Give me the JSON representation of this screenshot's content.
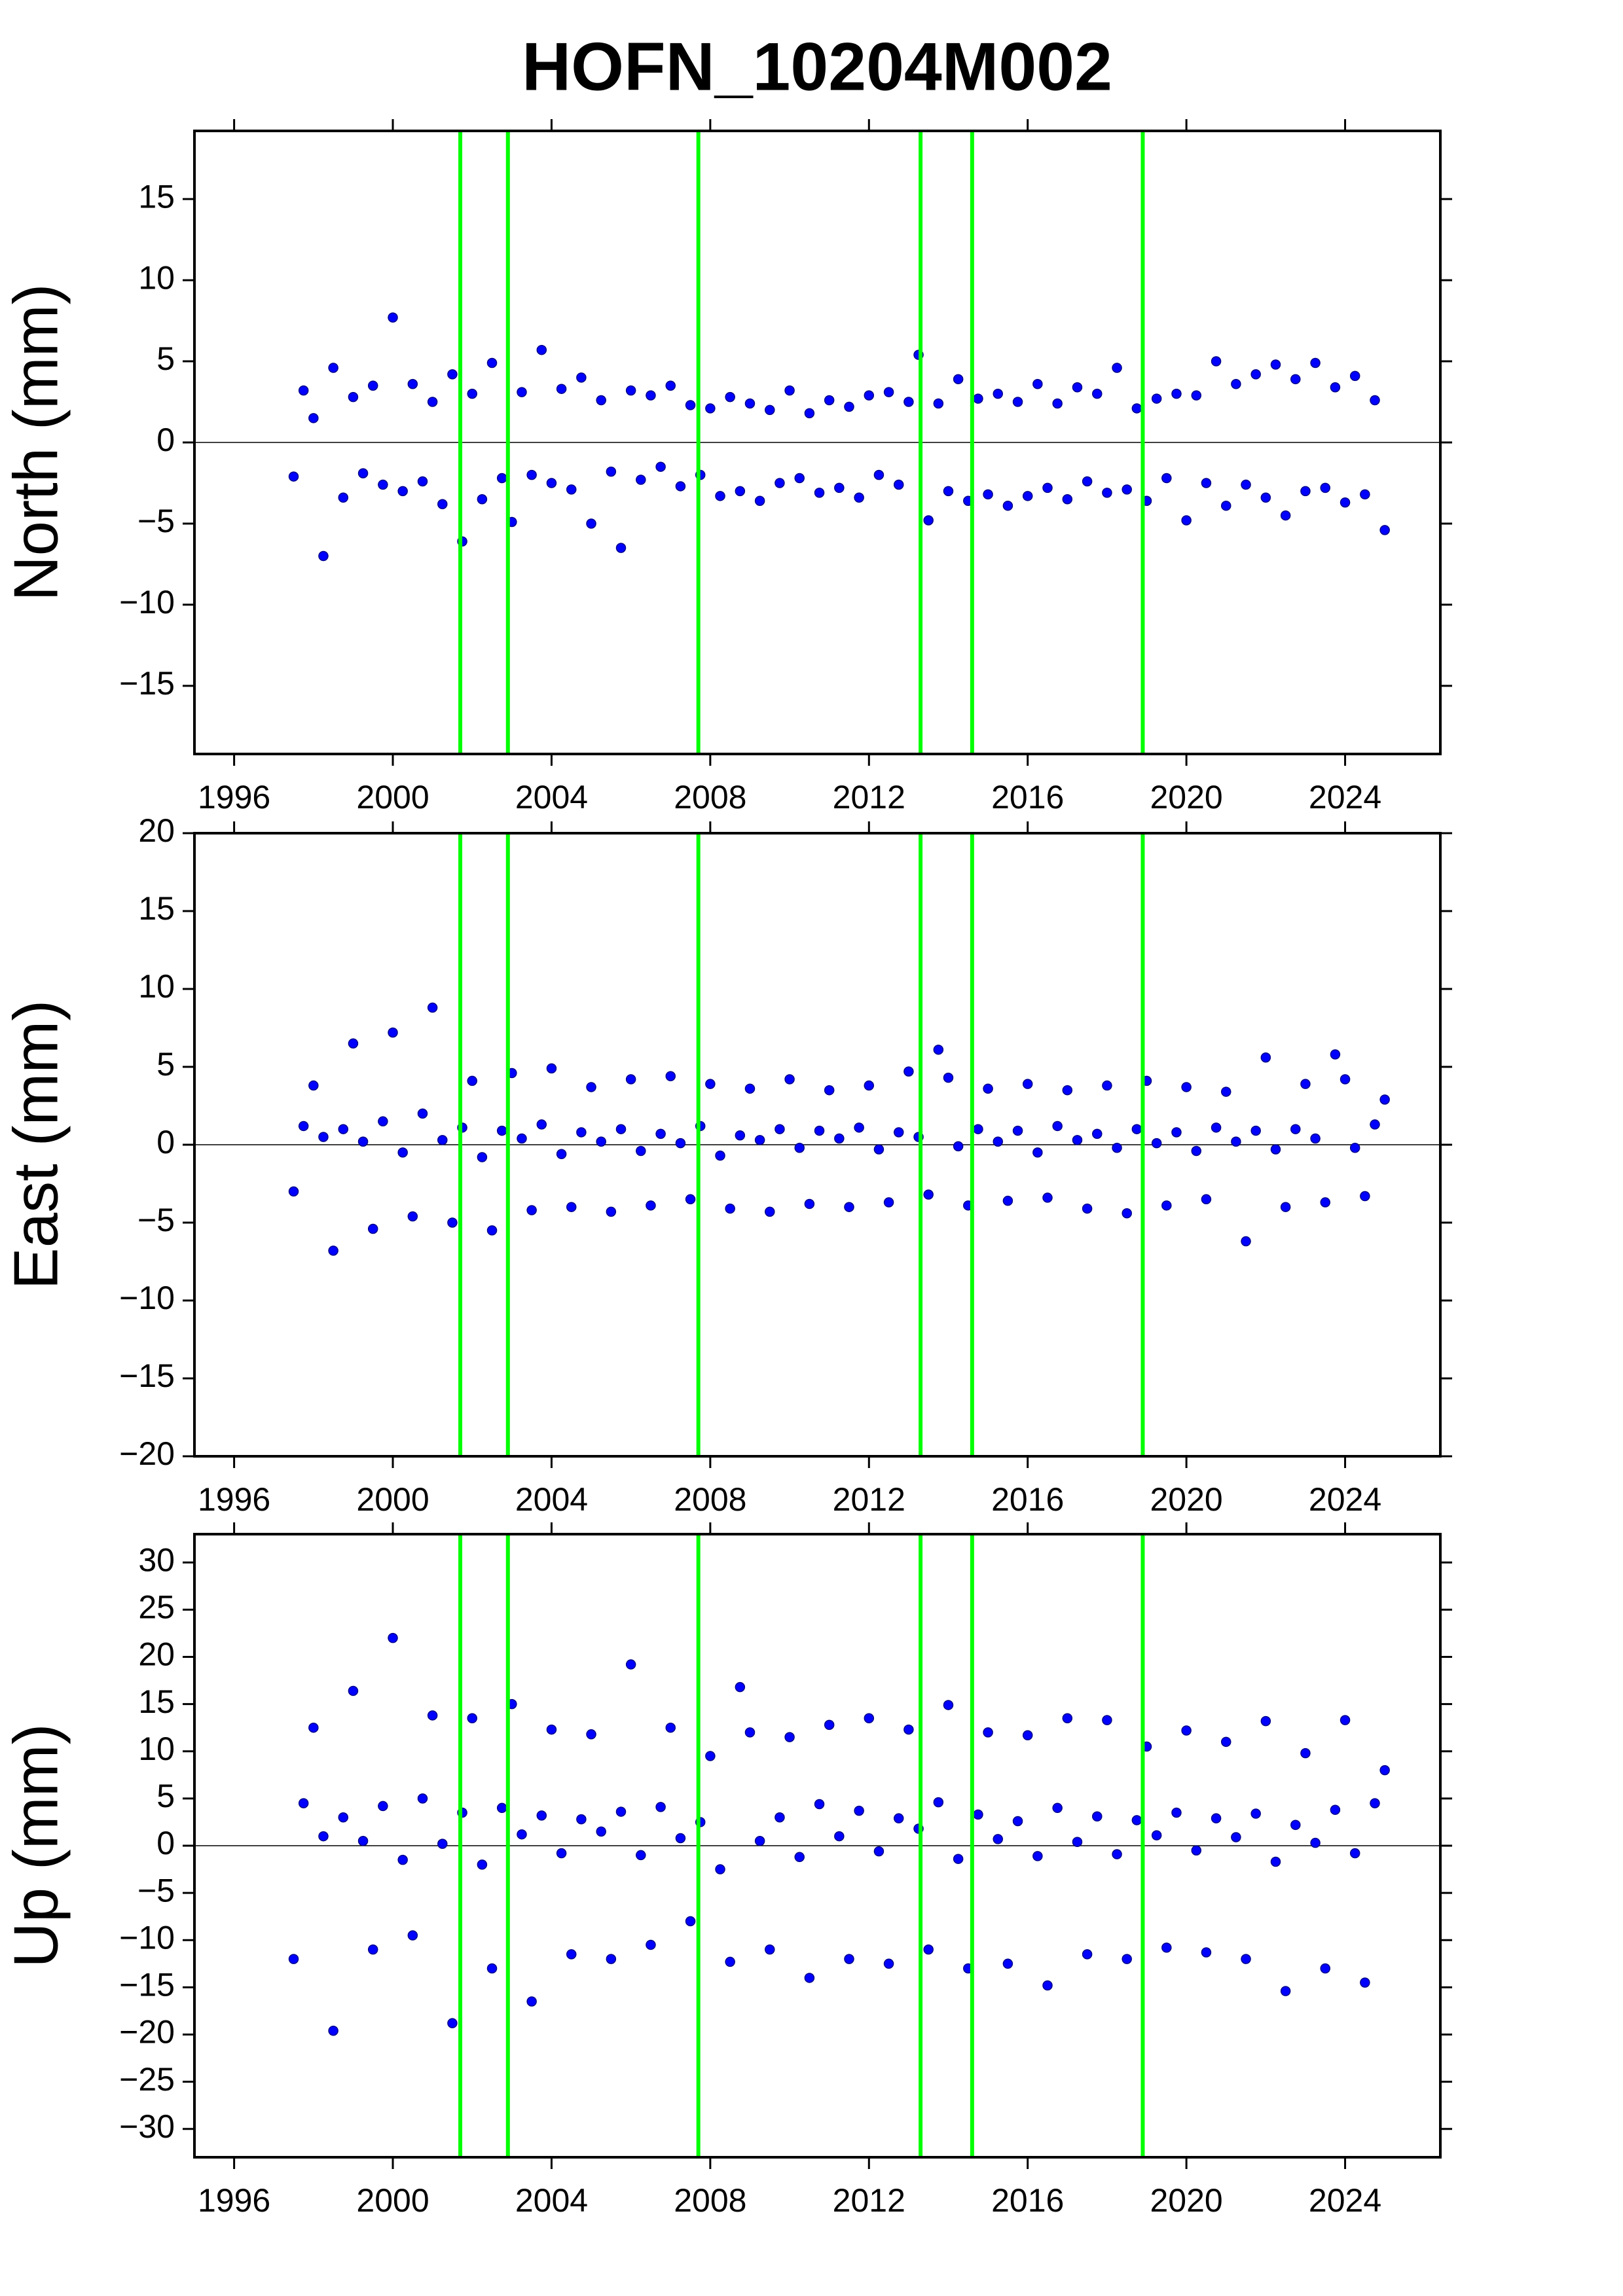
{
  "title": "HOFN_10204M002",
  "chart_data": [
    {
      "type": "scatter",
      "ylabel": "North (mm)",
      "color": "#0000ff",
      "xlim": [
        1995,
        2026.4
      ],
      "ylim": [
        -19.2,
        19.2
      ],
      "xticks": [
        1996,
        2000,
        2004,
        2008,
        2012,
        2016,
        2020,
        2024
      ],
      "yticks": [
        {
          "value": -15,
          "label": "−15"
        },
        {
          "value": -10,
          "label": "−10"
        },
        {
          "value": -5,
          "label": "−5"
        },
        0,
        5,
        10,
        15
      ],
      "hline": 0,
      "vlines": [
        2001.7,
        2002.9,
        2007.7,
        2013.3,
        2014.6,
        2018.9
      ],
      "vline_color": "#00ff00",
      "x": [
        1997.5,
        1997.75,
        1998,
        1998.25,
        1998.5,
        1998.75,
        1999,
        1999.25,
        1999.5,
        1999.75,
        2000,
        2000.25,
        2000.5,
        2000.75,
        2001,
        2001.25,
        2001.5,
        2001.75,
        2002,
        2002.25,
        2002.5,
        2002.75,
        2003,
        2003.25,
        2003.5,
        2003.75,
        2004,
        2004.25,
        2004.5,
        2004.75,
        2005,
        2005.25,
        2005.5,
        2005.75,
        2006,
        2006.25,
        2006.5,
        2006.75,
        2007,
        2007.25,
        2007.5,
        2007.75,
        2008,
        2008.25,
        2008.5,
        2008.75,
        2009,
        2009.25,
        2009.5,
        2009.75,
        2010,
        2010.25,
        2010.5,
        2010.75,
        2011,
        2011.25,
        2011.5,
        2011.75,
        2012,
        2012.25,
        2012.5,
        2012.75,
        2013,
        2013.25,
        2013.5,
        2013.75,
        2014,
        2014.25,
        2014.5,
        2014.75,
        2015,
        2015.25,
        2015.5,
        2015.75,
        2016,
        2016.25,
        2016.5,
        2016.75,
        2017,
        2017.25,
        2017.5,
        2017.75,
        2018,
        2018.25,
        2018.5,
        2018.75,
        2019,
        2019.25,
        2019.5,
        2019.75,
        2020,
        2020.25,
        2020.5,
        2020.75,
        2021,
        2021.25,
        2021.5,
        2021.75,
        2022,
        2022.25,
        2022.5,
        2022.75,
        2023,
        2023.25,
        2023.5,
        2023.75,
        2024,
        2024.25,
        2024.5,
        2024.75,
        2025
      ],
      "values": [
        -2.1,
        3.2,
        1.5,
        -7.0,
        4.6,
        -3.4,
        2.8,
        -1.9,
        3.5,
        -2.6,
        7.7,
        -3.0,
        3.6,
        -2.4,
        2.5,
        -3.8,
        4.2,
        -6.1,
        3.0,
        -3.5,
        4.9,
        -2.2,
        -4.9,
        3.1,
        -2.0,
        5.7,
        -2.5,
        3.3,
        -2.9,
        4.0,
        -5.0,
        2.6,
        -1.8,
        -6.5,
        3.2,
        -2.3,
        2.9,
        -1.5,
        3.5,
        -2.7,
        2.3,
        -2.0,
        2.1,
        -3.3,
        2.8,
        -3.0,
        2.4,
        -3.6,
        2.0,
        -2.5,
        3.2,
        -2.2,
        1.8,
        -3.1,
        2.6,
        -2.8,
        2.2,
        -3.4,
        2.9,
        -2.0,
        3.1,
        -2.6,
        2.5,
        5.4,
        -4.8,
        2.4,
        -3.0,
        3.9,
        -3.6,
        2.7,
        -3.2,
        3.0,
        -3.9,
        2.5,
        -3.3,
        3.6,
        -2.8,
        2.4,
        -3.5,
        3.4,
        -2.4,
        3.0,
        -3.1,
        4.6,
        -2.9,
        2.1,
        -3.6,
        2.7,
        -2.2,
        3.0,
        -4.8,
        2.9,
        -2.5,
        5.0,
        -3.9,
        3.6,
        -2.6,
        4.2,
        -3.4,
        4.8,
        -4.5,
        3.9,
        -3.0,
        4.9,
        -2.8,
        3.4,
        -3.7,
        4.1,
        -3.2,
        2.6,
        -5.4
      ]
    },
    {
      "type": "scatter",
      "ylabel": "East (mm)",
      "color": "#0000ff",
      "xlim": [
        1995,
        2026.4
      ],
      "ylim": [
        -20,
        20
      ],
      "xticks": [
        1996,
        2000,
        2004,
        2008,
        2012,
        2016,
        2020,
        2024
      ],
      "yticks": [
        {
          "value": -20,
          "label": "−20"
        },
        {
          "value": -15,
          "label": "−15"
        },
        {
          "value": -10,
          "label": "−10"
        },
        {
          "value": -5,
          "label": "−5"
        },
        0,
        5,
        10,
        15,
        20
      ],
      "hline": 0,
      "vlines": [
        2001.7,
        2002.9,
        2007.7,
        2013.3,
        2014.6,
        2018.9
      ],
      "vline_color": "#00ff00",
      "x": [
        1997.5,
        1997.75,
        1998,
        1998.25,
        1998.5,
        1998.75,
        1999,
        1999.25,
        1999.5,
        1999.75,
        2000,
        2000.25,
        2000.5,
        2000.75,
        2001,
        2001.25,
        2001.5,
        2001.75,
        2002,
        2002.25,
        2002.5,
        2002.75,
        2003,
        2003.25,
        2003.5,
        2003.75,
        2004,
        2004.25,
        2004.5,
        2004.75,
        2005,
        2005.25,
        2005.5,
        2005.75,
        2006,
        2006.25,
        2006.5,
        2006.75,
        2007,
        2007.25,
        2007.5,
        2007.75,
        2008,
        2008.25,
        2008.5,
        2008.75,
        2009,
        2009.25,
        2009.5,
        2009.75,
        2010,
        2010.25,
        2010.5,
        2010.75,
        2011,
        2011.25,
        2011.5,
        2011.75,
        2012,
        2012.25,
        2012.5,
        2012.75,
        2013,
        2013.25,
        2013.5,
        2013.75,
        2014,
        2014.25,
        2014.5,
        2014.75,
        2015,
        2015.25,
        2015.5,
        2015.75,
        2016,
        2016.25,
        2016.5,
        2016.75,
        2017,
        2017.25,
        2017.5,
        2017.75,
        2018,
        2018.25,
        2018.5,
        2018.75,
        2019,
        2019.25,
        2019.5,
        2019.75,
        2020,
        2020.25,
        2020.5,
        2020.75,
        2021,
        2021.25,
        2021.5,
        2021.75,
        2022,
        2022.25,
        2022.5,
        2022.75,
        2023,
        2023.25,
        2023.5,
        2023.75,
        2024,
        2024.25,
        2024.5,
        2024.75,
        2025
      ],
      "values": [
        -3.0,
        1.2,
        3.8,
        0.5,
        -6.8,
        1.0,
        6.5,
        0.2,
        -5.4,
        1.5,
        7.2,
        -0.5,
        -4.6,
        2.0,
        8.8,
        0.3,
        -5.0,
        1.1,
        4.1,
        -0.8,
        -5.5,
        0.9,
        4.6,
        0.4,
        -4.2,
        1.3,
        4.9,
        -0.6,
        -4.0,
        0.8,
        3.7,
        0.2,
        -4.3,
        1.0,
        4.2,
        -0.4,
        -3.9,
        0.7,
        4.4,
        0.1,
        -3.5,
        1.2,
        3.9,
        -0.7,
        -4.1,
        0.6,
        3.6,
        0.3,
        -4.3,
        1.0,
        4.2,
        -0.2,
        -3.8,
        0.9,
        3.5,
        0.4,
        -4.0,
        1.1,
        3.8,
        -0.3,
        -3.7,
        0.8,
        4.7,
        0.5,
        -3.2,
        6.1,
        4.3,
        -0.1,
        -3.9,
        1.0,
        3.6,
        0.2,
        -3.6,
        0.9,
        3.9,
        -0.5,
        -3.4,
        1.2,
        3.5,
        0.3,
        -4.1,
        0.7,
        3.8,
        -0.2,
        -4.4,
        1.0,
        4.1,
        0.1,
        -3.9,
        0.8,
        3.7,
        -0.4,
        -3.5,
        1.1,
        3.4,
        0.2,
        -6.2,
        0.9,
        5.6,
        -0.3,
        -4.0,
        1.0,
        3.9,
        0.4,
        -3.7,
        5.8,
        4.2,
        -0.2,
        -3.3,
        1.3,
        2.9
      ]
    },
    {
      "type": "scatter",
      "ylabel": "Up (mm)",
      "color": "#0000ff",
      "xlim": [
        1995,
        2026.4
      ],
      "ylim": [
        -33,
        33
      ],
      "xticks": [
        1996,
        2000,
        2004,
        2008,
        2012,
        2016,
        2020,
        2024
      ],
      "yticks": [
        {
          "value": -30,
          "label": "−30"
        },
        {
          "value": -25,
          "label": "−25"
        },
        {
          "value": -20,
          "label": "−20"
        },
        {
          "value": -15,
          "label": "−15"
        },
        {
          "value": -10,
          "label": "−10"
        },
        {
          "value": -5,
          "label": "−5"
        },
        0,
        5,
        10,
        15,
        20,
        25,
        30
      ],
      "hline": 0,
      "vlines": [
        2001.7,
        2002.9,
        2007.7,
        2013.3,
        2014.6,
        2018.9
      ],
      "vline_color": "#00ff00",
      "x": [
        1997.5,
        1997.75,
        1998,
        1998.25,
        1998.5,
        1998.75,
        1999,
        1999.25,
        1999.5,
        1999.75,
        2000,
        2000.25,
        2000.5,
        2000.75,
        2001,
        2001.25,
        2001.5,
        2001.75,
        2002,
        2002.25,
        2002.5,
        2002.75,
        2003,
        2003.25,
        2003.5,
        2003.75,
        2004,
        2004.25,
        2004.5,
        2004.75,
        2005,
        2005.25,
        2005.5,
        2005.75,
        2006,
        2006.25,
        2006.5,
        2006.75,
        2007,
        2007.25,
        2007.5,
        2007.75,
        2008,
        2008.25,
        2008.5,
        2008.75,
        2009,
        2009.25,
        2009.5,
        2009.75,
        2010,
        2010.25,
        2010.5,
        2010.75,
        2011,
        2011.25,
        2011.5,
        2011.75,
        2012,
        2012.25,
        2012.5,
        2012.75,
        2013,
        2013.25,
        2013.5,
        2013.75,
        2014,
        2014.25,
        2014.5,
        2014.75,
        2015,
        2015.25,
        2015.5,
        2015.75,
        2016,
        2016.25,
        2016.5,
        2016.75,
        2017,
        2017.25,
        2017.5,
        2017.75,
        2018,
        2018.25,
        2018.5,
        2018.75,
        2019,
        2019.25,
        2019.5,
        2019.75,
        2020,
        2020.25,
        2020.5,
        2020.75,
        2021,
        2021.25,
        2021.5,
        2021.75,
        2022,
        2022.25,
        2022.5,
        2022.75,
        2023,
        2023.25,
        2023.5,
        2023.75,
        2024,
        2024.25,
        2024.5,
        2024.75,
        2025
      ],
      "values": [
        -12.0,
        4.5,
        12.5,
        1.0,
        -19.6,
        3.0,
        16.4,
        0.5,
        -11.0,
        4.2,
        22.0,
        -1.5,
        -9.5,
        5.0,
        13.8,
        0.2,
        -18.8,
        3.5,
        13.5,
        -2.0,
        -13.0,
        4.0,
        15.0,
        1.2,
        -16.5,
        3.2,
        12.3,
        -0.8,
        -11.5,
        2.8,
        11.8,
        1.5,
        -12.0,
        3.6,
        19.2,
        -1.0,
        -10.5,
        4.1,
        12.5,
        0.8,
        -8.0,
        2.5,
        9.5,
        -2.5,
        -12.3,
        16.8,
        12.0,
        0.5,
        -11.0,
        3.0,
        11.5,
        -1.2,
        -14.0,
        4.4,
        12.8,
        1.0,
        -12.0,
        3.7,
        13.5,
        -0.6,
        -12.5,
        2.9,
        12.3,
        1.8,
        -11.0,
        4.6,
        14.9,
        -1.4,
        -13.0,
        3.3,
        12.0,
        0.7,
        -12.5,
        2.6,
        11.7,
        -1.1,
        -14.8,
        4.0,
        13.5,
        0.4,
        -11.5,
        3.1,
        13.3,
        -0.9,
        -12.0,
        2.7,
        10.5,
        1.1,
        -10.8,
        3.5,
        12.2,
        -0.5,
        -11.3,
        2.9,
        11.0,
        0.9,
        -12.0,
        3.4,
        13.2,
        -1.7,
        -15.4,
        2.2,
        9.8,
        0.3,
        -13.0,
        3.8,
        13.3,
        -0.8,
        -14.5,
        4.5,
        8.0
      ]
    }
  ]
}
